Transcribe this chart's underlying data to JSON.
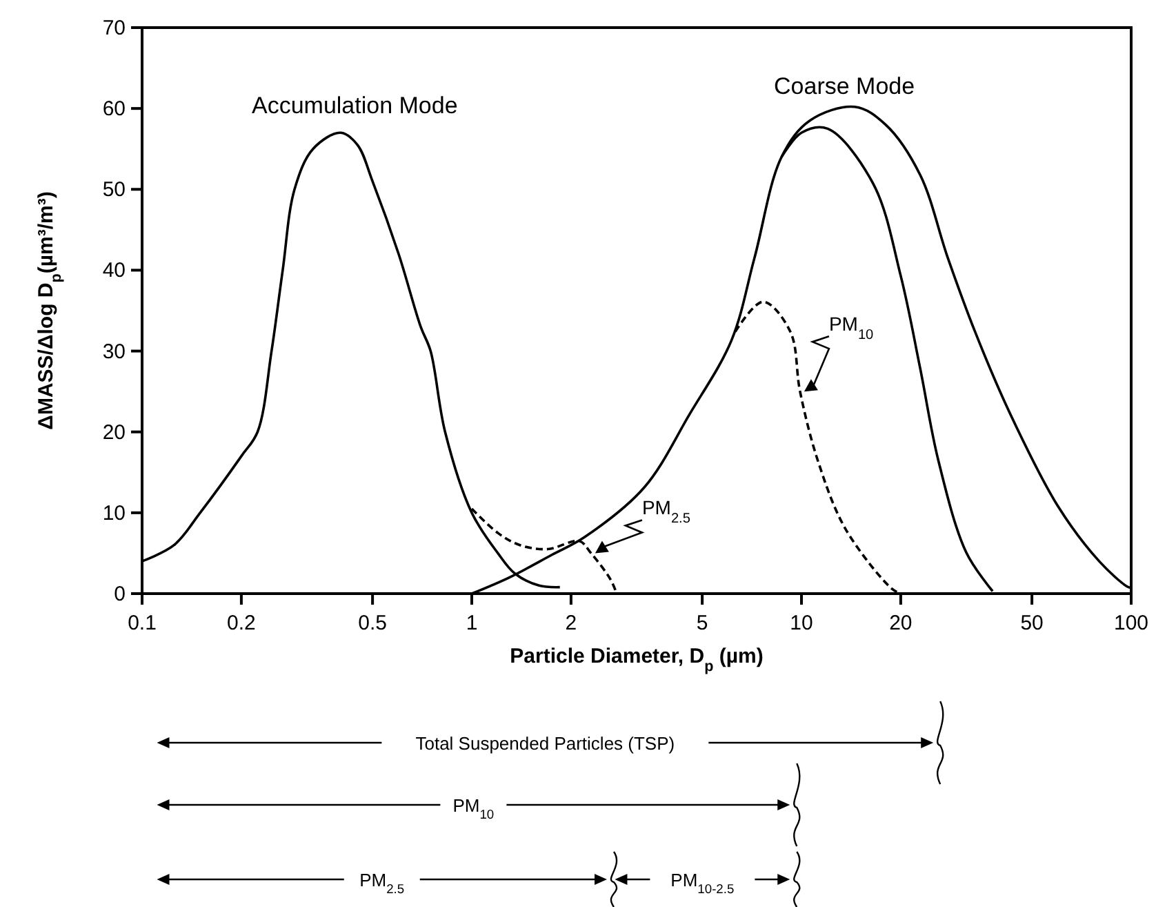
{
  "chart_data": {
    "type": "line",
    "xlabel": "Particle Diameter, D$_{p}$ (µm)",
    "ylabel": "ΔMASS/Δlog D$_{p}$(µm³/m³)",
    "log": "x",
    "xlim": [
      0.1,
      100
    ],
    "xticks": [
      0.1,
      0.2,
      0.5,
      1,
      2,
      5,
      10,
      20,
      50,
      100
    ],
    "ylim": [
      0,
      70
    ],
    "yticks": [
      0,
      10,
      20,
      30,
      40,
      50,
      60,
      70
    ],
    "grid": false,
    "marker": "none",
    "series": [
      {
        "color": "#000000",
        "line_style": "solid",
        "x": [
          0.1,
          0.125,
          0.15,
          0.2,
          0.224,
          0.247,
          0.267,
          0.29,
          0.33,
          0.4,
          0.45,
          0.5,
          0.6,
          0.7,
          0.75,
          0.83,
          1.0,
          1.2,
          1.35,
          1.6,
          1.85
        ],
        "values": [
          4,
          6,
          10,
          17,
          20,
          30,
          40,
          50,
          55,
          57,
          55.5,
          51,
          42,
          33,
          30,
          20,
          10,
          5,
          2.5,
          1,
          0.8
        ]
      },
      {
        "color": "#000000",
        "line_style": "solid",
        "x": [
          1,
          1.3,
          1.75,
          2.2,
          3.33,
          4.58,
          6.13,
          7.2,
          8.7,
          10.6,
          14.5,
          18,
          22.9,
          27.8,
          33.6,
          43,
          60,
          80,
          97,
          100
        ],
        "values": [
          0,
          2,
          4.8,
          7,
          13.1,
          22.2,
          31.3,
          41.5,
          54,
          58.5,
          60.2,
          58,
          51.8,
          41.5,
          32.4,
          22.2,
          10.8,
          4,
          0.9,
          0.7
        ]
      },
      {
        "color": "#000000",
        "line_style": "solid",
        "x": [
          8.7,
          10,
          12,
          16.5,
          20,
          22.9,
          26,
          31.6,
          38
        ],
        "values": [
          54,
          57,
          57.5,
          50.7,
          39.3,
          27.9,
          16.5,
          5.1,
          0.3
        ]
      },
      {
        "name": "PM$_{10}$",
        "color": "#000000",
        "line_style": "dashed",
        "x": [
          6.3,
          7.65,
          9.25,
          9.9,
          11.2,
          13.6,
          18.8,
          20
        ],
        "values": [
          32.4,
          36.1,
          32.4,
          25,
          16.5,
          8,
          0.6,
          0
        ]
      },
      {
        "name": "PM$_{2.5}$",
        "color": "#000000",
        "line_style": "dashed",
        "x": [
          1,
          1.2,
          1.4,
          1.7,
          2.12,
          2.3,
          2.64,
          2.75
        ],
        "values": [
          10.5,
          7.5,
          6,
          5.5,
          6.5,
          5,
          1.7,
          0
        ]
      }
    ],
    "annotations": [
      "Accumulation Mode",
      "Coarse Mode",
      "Total Suspended Particles (TSP)",
      "PM$_{10}$",
      "PM$_{2.5}$",
      "PM$_{10-2.5}$"
    ]
  }
}
